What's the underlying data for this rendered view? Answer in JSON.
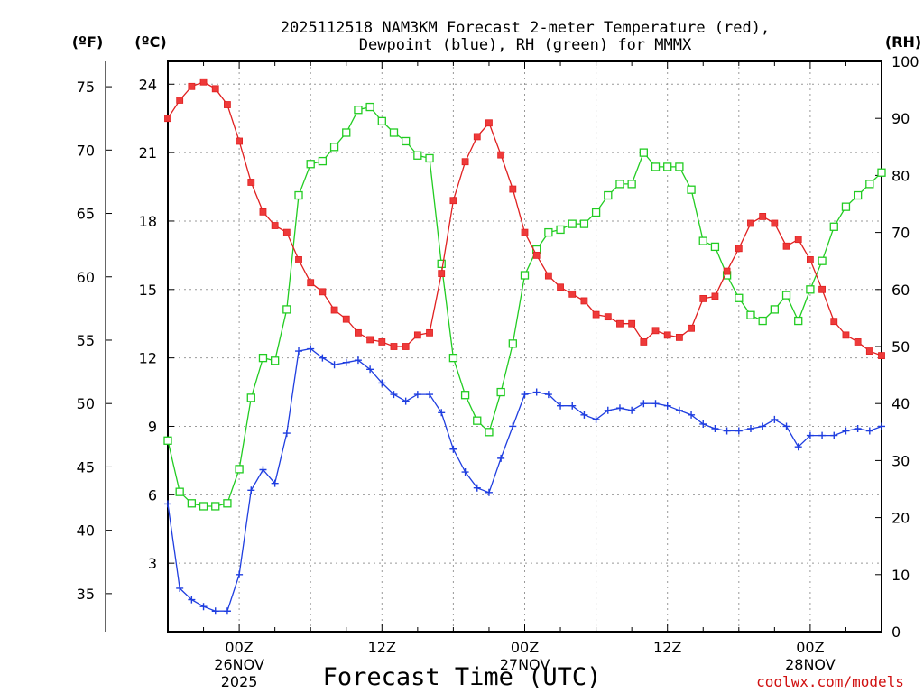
{
  "header": {
    "title_line1": "2025112518 NAM3KM Forecast 2-meter Temperature (red),",
    "title_line2": "Dewpoint (blue), RH (green) for MMMX"
  },
  "axes": {
    "f_unit": "(ºF)",
    "c_unit": "(ºC)",
    "rh_unit": "(RH)",
    "f_ticks": [
      "75",
      "70",
      "65",
      "60",
      "55",
      "50",
      "45",
      "40",
      "35"
    ],
    "c_ticks": [
      "24",
      "21",
      "18",
      "15",
      "12",
      "9",
      "6",
      "3"
    ],
    "rh_ticks": [
      "100",
      "90",
      "80",
      "70",
      "60",
      "50",
      "40",
      "30",
      "20",
      "10",
      "0"
    ],
    "x_labels": [
      {
        "time": "00Z",
        "date": "26NOV",
        "year": "2025"
      },
      {
        "time": "12Z",
        "date": "",
        "year": ""
      },
      {
        "time": "00Z",
        "date": "27NOV",
        "year": ""
      },
      {
        "time": "12Z",
        "date": "",
        "year": ""
      },
      {
        "time": "00Z",
        "date": "28NOV",
        "year": ""
      }
    ],
    "x_title": "Forecast Time (UTC)"
  },
  "credit": "coolwx.com/models",
  "colors": {
    "temperature": "#e02020",
    "temperature_marker": "#ee3a3a",
    "dewpoint": "#1f3ee0",
    "rh": "#22cc22",
    "rh_marker_fill": "#ffffff"
  },
  "chart_data": {
    "type": "line",
    "title": "2025112518 NAM3KM Forecast 2-meter Temperature (red), Dewpoint (blue), RH (green) for MMMX",
    "xlabel": "Forecast Time (UTC)",
    "x_units": "hours since 2025-11-25 18Z",
    "x_range": [
      0,
      60
    ],
    "temperature_axis_celsius": [
      0,
      25
    ],
    "fahrenheit_axis_range": [
      32,
      77
    ],
    "rh_axis_range": [
      0,
      100
    ],
    "series": [
      {
        "name": "2-meter Temperature",
        "axis": "celsius",
        "color": "red",
        "marker": "filled-square",
        "x": [
          0,
          1,
          2,
          3,
          4,
          5,
          6,
          7,
          8,
          9,
          10,
          11,
          12,
          13,
          14,
          15,
          16,
          17,
          18,
          19,
          20,
          21,
          22,
          23,
          24,
          25,
          26,
          27,
          28,
          29,
          30,
          31,
          32,
          33,
          34,
          35,
          36,
          37,
          38,
          39,
          40,
          41,
          42,
          43,
          44,
          45,
          46,
          47,
          48,
          49,
          50,
          51,
          52,
          53,
          54,
          55,
          56,
          57,
          58,
          59,
          60
        ],
        "values": [
          22.5,
          23.3,
          23.9,
          24.1,
          23.8,
          23.1,
          21.5,
          19.7,
          18.4,
          17.8,
          17.5,
          16.3,
          15.3,
          14.9,
          14.1,
          13.7,
          13.1,
          12.8,
          12.7,
          12.5,
          12.5,
          13.0,
          13.1,
          15.7,
          18.9,
          20.6,
          21.7,
          22.3,
          20.9,
          19.4,
          17.5,
          16.5,
          15.6,
          15.1,
          14.8,
          14.5,
          13.9,
          13.8,
          13.5,
          13.5,
          12.7,
          13.2,
          13.0,
          12.9,
          13.3,
          14.6,
          14.7,
          15.8,
          16.8,
          17.9,
          18.2,
          17.9,
          16.9,
          17.2,
          16.3,
          15.0,
          13.6,
          13.0,
          12.7,
          12.3,
          12.1
        ]
      },
      {
        "name": "Dewpoint",
        "axis": "celsius",
        "color": "blue",
        "marker": "plus",
        "x": [
          0,
          1,
          2,
          3,
          4,
          5,
          6,
          7,
          8,
          9,
          10,
          11,
          12,
          13,
          14,
          15,
          16,
          17,
          18,
          19,
          20,
          21,
          22,
          23,
          24,
          25,
          26,
          27,
          28,
          29,
          30,
          31,
          32,
          33,
          34,
          35,
          36,
          37,
          38,
          39,
          40,
          41,
          42,
          43,
          44,
          45,
          46,
          47,
          48,
          49,
          50,
          51,
          52,
          53,
          54,
          55,
          56,
          57,
          58,
          59,
          60
        ],
        "values": [
          5.6,
          1.9,
          1.4,
          1.1,
          0.9,
          0.9,
          2.5,
          6.2,
          7.1,
          6.5,
          8.7,
          12.3,
          12.4,
          12.0,
          11.7,
          11.8,
          11.9,
          11.5,
          10.9,
          10.4,
          10.1,
          10.4,
          10.4,
          9.6,
          8.0,
          7.0,
          6.3,
          6.1,
          7.6,
          9.0,
          10.4,
          10.5,
          10.4,
          9.9,
          9.9,
          9.5,
          9.3,
          9.7,
          9.8,
          9.7,
          10.0,
          10.0,
          9.9,
          9.7,
          9.5,
          9.1,
          8.9,
          8.8,
          8.8,
          8.9,
          9.0,
          9.3,
          9.0,
          8.1,
          8.6,
          8.6,
          8.6,
          8.8,
          8.9,
          8.8,
          9.0
        ]
      },
      {
        "name": "RH",
        "axis": "rh",
        "color": "green",
        "marker": "open-square",
        "x": [
          0,
          1,
          2,
          3,
          4,
          5,
          6,
          7,
          8,
          9,
          10,
          11,
          12,
          13,
          14,
          15,
          16,
          17,
          18,
          19,
          20,
          21,
          22,
          23,
          24,
          25,
          26,
          27,
          28,
          29,
          30,
          31,
          32,
          33,
          34,
          35,
          36,
          37,
          38,
          39,
          40,
          41,
          42,
          43,
          44,
          45,
          46,
          47,
          48,
          49,
          50,
          51,
          52,
          53,
          54,
          55,
          56,
          57,
          58,
          59,
          60
        ],
        "values": [
          33.5,
          24.5,
          22.5,
          22.0,
          22.0,
          22.5,
          28.5,
          41.0,
          48.0,
          47.5,
          56.5,
          76.5,
          82.0,
          82.5,
          85.0,
          87.5,
          91.5,
          92.0,
          89.5,
          87.5,
          86.0,
          83.5,
          83.0,
          64.5,
          48.0,
          41.5,
          37.0,
          35.0,
          42.0,
          50.5,
          62.5,
          67.0,
          70.0,
          70.5,
          71.5,
          71.5,
          73.5,
          76.5,
          78.5,
          78.5,
          84.0,
          81.5,
          81.5,
          81.5,
          77.5,
          68.5,
          67.5,
          62.5,
          58.5,
          55.5,
          54.5,
          56.5,
          59.0,
          54.5,
          60.0,
          65.0,
          71.0,
          74.5,
          76.5,
          78.5,
          80.5
        ]
      }
    ],
    "legend": "none (series named in title)",
    "grid": true
  }
}
